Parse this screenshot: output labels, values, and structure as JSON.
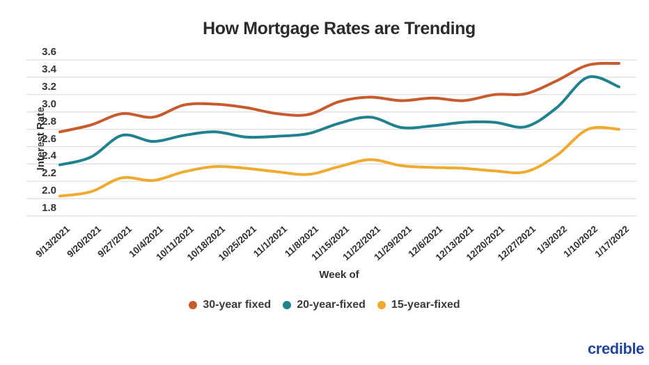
{
  "branding": {
    "logo_text": "credible",
    "logo_color": "#26469B"
  },
  "chart_data": {
    "type": "line",
    "title": "How Mortgage Rates are Trending",
    "xlabel": "Week of",
    "ylabel": "Interest Rate",
    "ylim": [
      1.8,
      3.6
    ],
    "ytick_labels": [
      "3.6",
      "3.4",
      "3.2",
      "3.0",
      "2.8",
      "2.6",
      "2.4",
      "2.2",
      "2.0",
      "1.8"
    ],
    "grid": true,
    "legend_position": "bottom",
    "categories": [
      "9/13/2021",
      "9/20/2021",
      "9/27/2021",
      "10/4/2021",
      "10/11/2021",
      "10/18/2021",
      "10/25/2021",
      "11/1/2021",
      "11/8/2021",
      "11/15/2021",
      "11/22/2021",
      "11/29/2021",
      "12/6/2021",
      "12/13/2021",
      "12/20/2021",
      "12/27/2021",
      "1/3/2022",
      "1/10/2022",
      "1/17/2022"
    ],
    "series": [
      {
        "name": "30-year fixed",
        "color": "#C75B2E",
        "values": [
          2.77,
          2.85,
          2.98,
          2.94,
          3.08,
          3.09,
          3.05,
          2.98,
          2.97,
          3.12,
          3.17,
          3.13,
          3.16,
          3.13,
          3.2,
          3.21,
          3.36,
          3.54,
          3.56
        ]
      },
      {
        "name": "20-year-fixed",
        "color": "#20818F",
        "values": [
          2.39,
          2.48,
          2.73,
          2.66,
          2.73,
          2.77,
          2.71,
          2.72,
          2.75,
          2.87,
          2.94,
          2.82,
          2.84,
          2.88,
          2.88,
          2.83,
          3.05,
          3.4,
          3.29
        ]
      },
      {
        "name": "15-year-fixed",
        "color": "#EFAB30",
        "values": [
          2.03,
          2.08,
          2.24,
          2.21,
          2.31,
          2.37,
          2.35,
          2.31,
          2.28,
          2.37,
          2.45,
          2.38,
          2.36,
          2.35,
          2.32,
          2.31,
          2.5,
          2.8,
          2.8
        ]
      }
    ]
  }
}
